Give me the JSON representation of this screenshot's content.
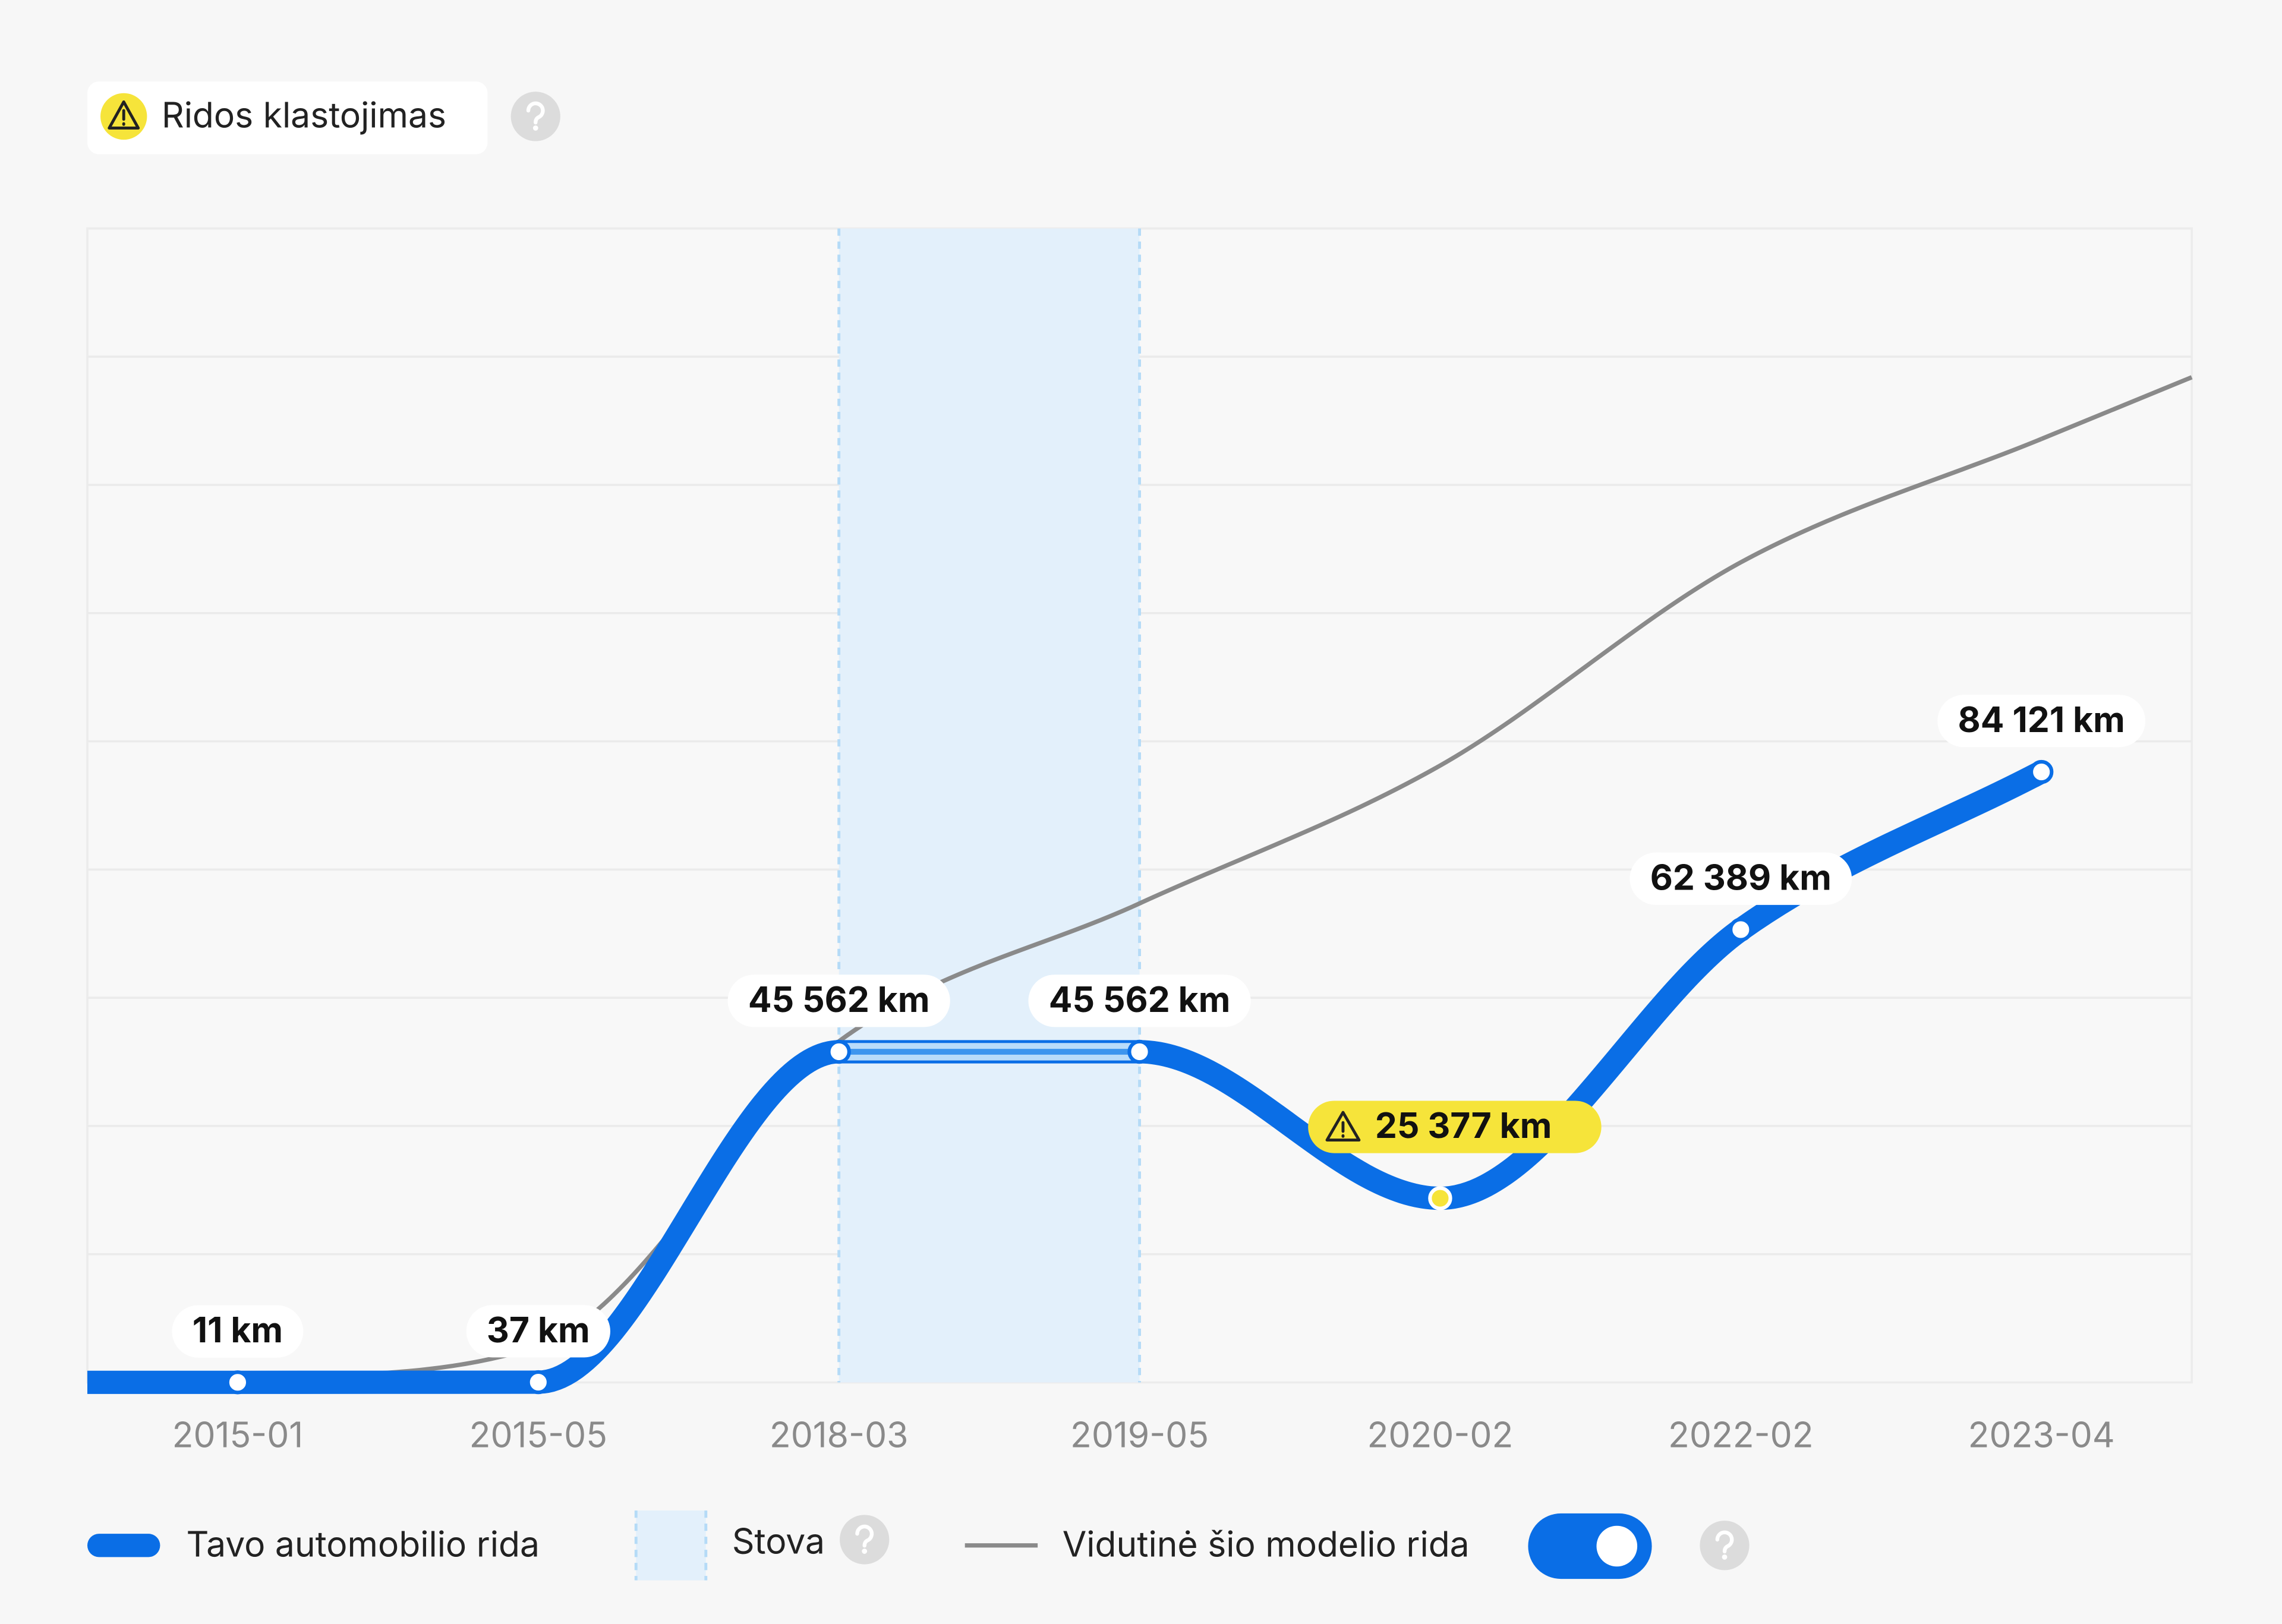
{
  "header": {
    "title": "Ridos klastojimas"
  },
  "chart_data": {
    "type": "line",
    "categories": [
      "2015-01",
      "2015-05",
      "2018-03",
      "2019-05",
      "2020-02",
      "2022-02",
      "2023-04"
    ],
    "series": [
      {
        "name": "Tavo automobilio rida",
        "color": "#0a6ee6",
        "values": [
          11,
          37,
          45562,
          45562,
          25377,
          62389,
          84121
        ],
        "value_labels": [
          "11 km",
          "37 km",
          "45 562 km",
          "45 562 km",
          "25 377 km",
          "62 389 km",
          "84 121 km"
        ]
      },
      {
        "name": "Vidutinė šio modelio rida",
        "color": "#8a8a8a",
        "values": [
          400,
          5000,
          47000,
          66000,
          85000,
          113000,
          130000
        ]
      }
    ],
    "ylim": [
      0,
      159000
    ],
    "grid_divisions": 9,
    "standstill": {
      "label": "Stova",
      "from": "2018-03",
      "to": "2019-05",
      "color": "#e3f0fb"
    },
    "flagged": "2020-02",
    "flag_color": "#f6e43a",
    "average_toggle": true
  }
}
